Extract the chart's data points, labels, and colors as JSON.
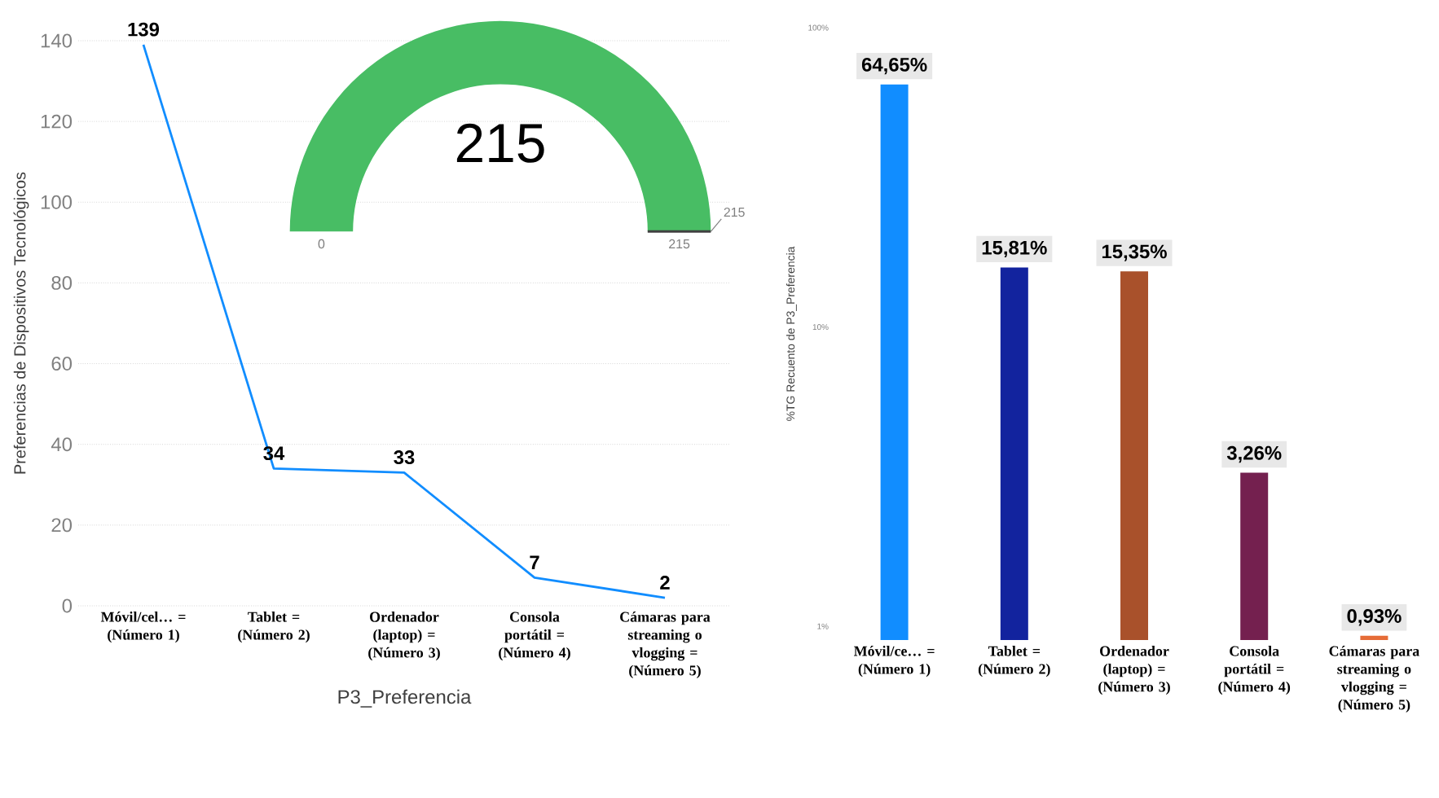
{
  "chart_data": [
    {
      "type": "line",
      "xlabel": "P3_Preferencia",
      "ylabel": "Preferencias de Dispositivos Tecnológicos",
      "categories": [
        "Móvil/cel… = (Número 1)",
        "Tablet = (Número 2)",
        "Ordenador (laptop) = (Número 3)",
        "Consola portátil = (Número 4)",
        "Cámaras para streaming o vlogging = (Número 5)"
      ],
      "values": [
        139,
        34,
        33,
        7,
        2
      ],
      "color": "#118dff",
      "ylim": [
        0,
        140
      ],
      "yticks": [
        0,
        20,
        40,
        60,
        80,
        100,
        120,
        140
      ],
      "grid": "y",
      "data_labels": true
    },
    {
      "type": "other",
      "values": [
        215
      ],
      "value_labels": [
        "215"
      ],
      "color": "#48bd64",
      "annotations": [
        "0",
        "215",
        "215"
      ]
    },
    {
      "type": "bar",
      "ylabel": "%TG Recuento de P3_Preferencia",
      "categories": [
        "Móvil/ce… = (Número 1)",
        "Tablet = (Número 2)",
        "Ordenador (laptop) = (Número 3)",
        "Consola portátil = (Número 4)",
        "Cámaras para streaming o vlogging = (Número 5)"
      ],
      "values": [
        64.65,
        15.81,
        15.35,
        3.26,
        0.93
      ],
      "value_labels": [
        "64,65%",
        "15,81%",
        "15,35%",
        "3,26%",
        "0,93%"
      ],
      "colors": [
        "#118dff",
        "#12239e",
        "#a9512b",
        "#74204f",
        "#e66c37"
      ],
      "log": true,
      "ylim": [
        0.9,
        100
      ],
      "yticks": [
        {
          "value": 1,
          "label": "1%"
        },
        {
          "value": 10,
          "label": "10%"
        },
        {
          "value": 100,
          "label": "100%"
        }
      ]
    }
  ]
}
